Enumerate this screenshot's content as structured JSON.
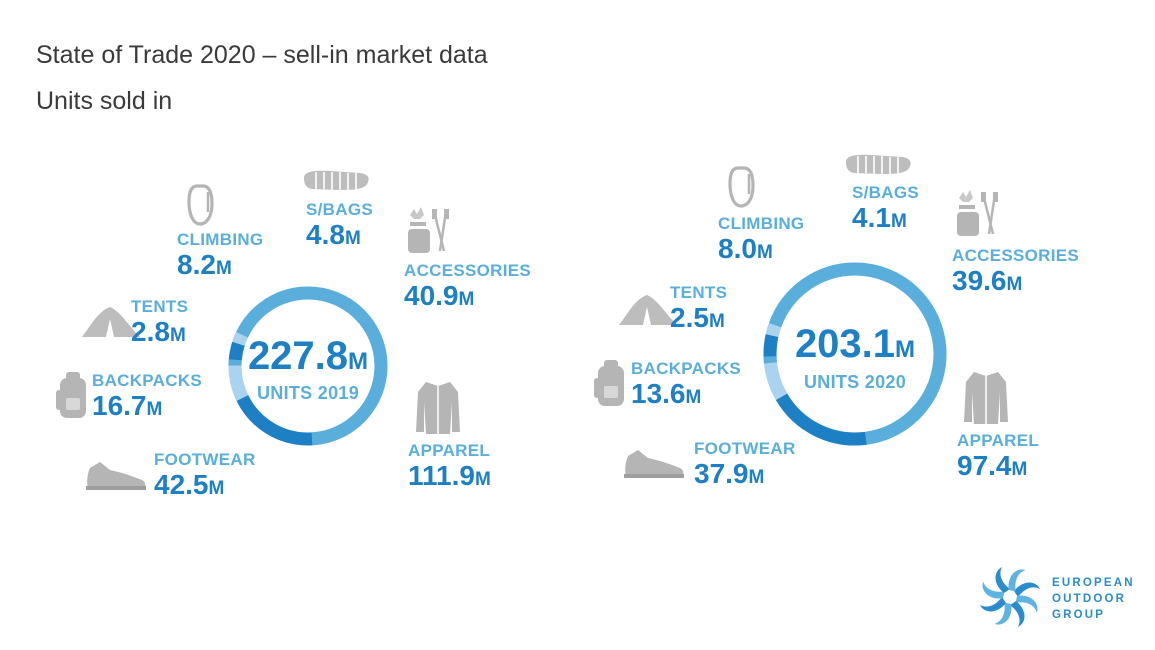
{
  "title": {
    "line1": "State of Trade 2020 – sell-in market data",
    "line2": "Units sold in"
  },
  "unit_suffix": "M",
  "colors": {
    "dark_blue": "#1d7fc4",
    "mid_blue": "#5aaedc",
    "light_blue": "#a9d3ef",
    "icon_gray": "#b5b5b5"
  },
  "chart_data": [
    {
      "type": "pie",
      "donut": true,
      "center_value": "227.8",
      "center_label": "UNITS 2019",
      "categories": [
        "APPAREL",
        "FOOTWEAR",
        "BACKPACKS",
        "TENTS",
        "CLIMBING",
        "S/BAGS",
        "ACCESSORIES"
      ],
      "values": [
        "111.9",
        "42.5",
        "16.7",
        "2.8",
        "8.2",
        "4.8",
        "40.9"
      ],
      "unit": "M"
    },
    {
      "type": "pie",
      "donut": true,
      "center_value": "203.1",
      "center_label": "UNITS 2020",
      "categories": [
        "APPAREL",
        "FOOTWEAR",
        "BACKPACKS",
        "TENTS",
        "CLIMBING",
        "S/BAGS",
        "ACCESSORIES"
      ],
      "values": [
        "97.4",
        "37.9",
        "13.6",
        "2.5",
        "8.0",
        "4.1",
        "39.6"
      ],
      "unit": "M"
    }
  ],
  "icons": [
    "carabiner-icon",
    "sleeping-bag-icon",
    "stove-and-poles-icon",
    "tent-icon",
    "backpack-icon",
    "jacket-icon",
    "shoe-icon"
  ],
  "logo": {
    "line1": "EUROPEAN",
    "line2": "OUTDOOR",
    "line3": "GROUP"
  }
}
